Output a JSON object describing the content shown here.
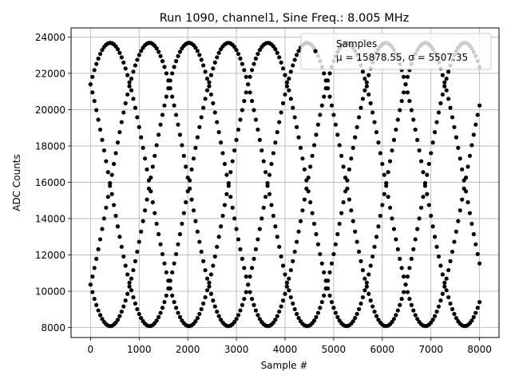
{
  "chart_data": {
    "type": "scatter",
    "title": "Run 1090, channel1, Sine Freq.: 8.005 MHz",
    "xlabel": "Sample #",
    "ylabel": "ADC Counts",
    "xlim": [
      -400,
      8400
    ],
    "ylim": [
      7450,
      24500
    ],
    "x_ticks": [
      0,
      1000,
      2000,
      3000,
      4000,
      5000,
      6000,
      7000,
      8000
    ],
    "y_ticks": [
      8000,
      10000,
      12000,
      14000,
      16000,
      18000,
      20000,
      22000,
      24000
    ],
    "grid": true,
    "legend": {
      "placement": "top-right",
      "entries": [
        {
          "label": "Samples",
          "stats": "μ = 15878.55, σ = 5507.35"
        }
      ]
    },
    "series": [
      {
        "name": "Samples",
        "marker": "dot",
        "color": "#000000",
        "model": {
          "mean": 15878.55,
          "amplitude": 7800,
          "period_samples": 3240,
          "phases_deg": [
            -45,
            45,
            135,
            225
          ]
        },
        "x_range": [
          0,
          8000
        ]
      }
    ]
  }
}
